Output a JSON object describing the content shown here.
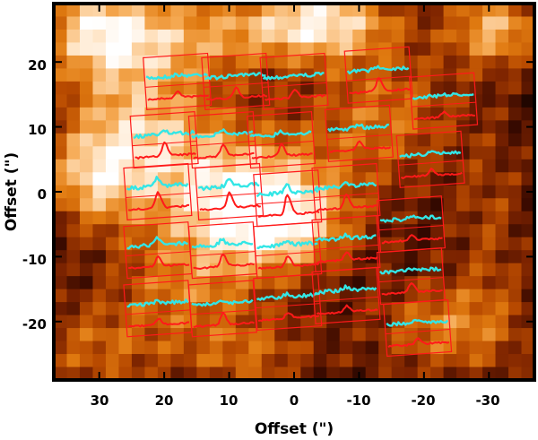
{
  "chart_data": {
    "type": "heatmap",
    "title": "",
    "xlabel": "Offset (\")",
    "ylabel": "Offset (\")",
    "xlim": [
      37,
      -37
    ],
    "ylim": [
      -29,
      29
    ],
    "x_ticks": [
      30,
      20,
      10,
      0,
      -10,
      -20,
      -30
    ],
    "x_tick_labels": [
      "30",
      "20",
      "10",
      "0",
      "-10",
      "-20",
      "-30"
    ],
    "y_ticks": [
      20,
      10,
      0,
      -10,
      -20
    ],
    "y_tick_labels": [
      "20",
      "10",
      "0",
      "-10",
      "-20"
    ],
    "colormap": [
      "#000000",
      "#3a0a00",
      "#7a2200",
      "#b84a00",
      "#e07a10",
      "#f5a850",
      "#ffe2c0",
      "#ffffff"
    ],
    "emission_blobs": [
      {
        "x": 24,
        "y": 10,
        "sx": 8,
        "sy": 8,
        "amp": 0.55
      },
      {
        "x": 8,
        "y": 0,
        "sx": 10,
        "sy": 7,
        "amp": 0.65
      },
      {
        "x": 2,
        "y": -5,
        "sx": 7,
        "sy": 5,
        "amp": 0.5
      },
      {
        "x": 31,
        "y": 2,
        "sx": 5,
        "sy": 5,
        "amp": 0.45
      },
      {
        "x": -4,
        "y": 26,
        "sx": 8,
        "sy": 4,
        "amp": 0.7
      },
      {
        "x": 30,
        "y": 25,
        "sx": 6,
        "sy": 5,
        "amp": 0.6
      },
      {
        "x": -31,
        "y": 25,
        "sx": 5,
        "sy": 4,
        "amp": 0.55
      },
      {
        "x": -14,
        "y": 12,
        "sx": 8,
        "sy": 7,
        "amp": 0.35
      },
      {
        "x": 16,
        "y": -14,
        "sx": 8,
        "sy": 6,
        "amp": 0.35
      },
      {
        "x": -24,
        "y": -21,
        "sx": 8,
        "sy": 5,
        "amp": 0.4
      },
      {
        "x": 16,
        "y": 24,
        "sx": 10,
        "sy": 5,
        "amp": 0.4
      },
      {
        "x": -30,
        "y": -5,
        "sx": 4,
        "sy": 10,
        "amp": 0.2
      },
      {
        "x": 30,
        "y": -24,
        "sx": 8,
        "sy": 5,
        "amp": 0.3
      },
      {
        "x": 7,
        "y": -25,
        "sx": 7,
        "sy": 4,
        "amp": 0.3
      }
    ],
    "spectra_panels": [
      {
        "x": 18,
        "y": 17,
        "tilt": -4,
        "peak": 0.3,
        "cyan_bump": 0.1
      },
      {
        "x": 9,
        "y": 17,
        "tilt": -4,
        "peak": 0.5,
        "cyan_bump": 0.1
      },
      {
        "x": 0,
        "y": 17,
        "tilt": -4,
        "peak": 0.4,
        "cyan_bump": 0.1
      },
      {
        "x": -13,
        "y": 18,
        "tilt": -4,
        "peak": 0.7,
        "cyan_bump": 0.2
      },
      {
        "x": -23,
        "y": 14,
        "tilt": -4,
        "peak": 0.25,
        "cyan_bump": 0.1
      },
      {
        "x": 20,
        "y": 8,
        "tilt": -4,
        "peak": 0.7,
        "cyan_bump": 0.3
      },
      {
        "x": 11,
        "y": 8,
        "tilt": -4,
        "peak": 0.6,
        "cyan_bump": 0.3
      },
      {
        "x": 2,
        "y": 8,
        "tilt": -4,
        "peak": 0.6,
        "cyan_bump": 0.2
      },
      {
        "x": -10,
        "y": 9,
        "tilt": -4,
        "peak": 0.4,
        "cyan_bump": 0.2
      },
      {
        "x": -21,
        "y": 5,
        "tilt": -4,
        "peak": 0.3,
        "cyan_bump": 0.1
      },
      {
        "x": 21,
        "y": 0,
        "tilt": -4,
        "peak": 0.8,
        "cyan_bump": 0.5
      },
      {
        "x": 10,
        "y": 0,
        "tilt": -4,
        "peak": 0.8,
        "cyan_bump": 0.4
      },
      {
        "x": 1,
        "y": -1,
        "tilt": -4,
        "peak": 1.0,
        "cyan_bump": 0.5
      },
      {
        "x": -8,
        "y": 0,
        "tilt": -4,
        "peak": 0.7,
        "cyan_bump": 0.3
      },
      {
        "x": -18,
        "y": -5,
        "tilt": -4,
        "peak": 0.3,
        "cyan_bump": 0.2
      },
      {
        "x": 21,
        "y": -9,
        "tilt": -4,
        "peak": 0.5,
        "cyan_bump": 0.4
      },
      {
        "x": 11,
        "y": -9,
        "tilt": -4,
        "peak": 0.6,
        "cyan_bump": 0.3
      },
      {
        "x": 1,
        "y": -9,
        "tilt": -4,
        "peak": 0.5,
        "cyan_bump": 0.2
      },
      {
        "x": -8,
        "y": -8,
        "tilt": -4,
        "peak": 0.4,
        "cyan_bump": 0.2
      },
      {
        "x": -18,
        "y": -13,
        "tilt": -4,
        "peak": 0.5,
        "cyan_bump": 0.1
      },
      {
        "x": 21,
        "y": -18,
        "tilt": -4,
        "peak": 0.3,
        "cyan_bump": 0.1
      },
      {
        "x": 11,
        "y": -18,
        "tilt": -4,
        "peak": 0.6,
        "cyan_bump": 0.2
      },
      {
        "x": 1,
        "y": -17,
        "tilt": -4,
        "peak": 0.3,
        "cyan_bump": 0.2
      },
      {
        "x": -8,
        "y": -16,
        "tilt": -4,
        "peak": 0.3,
        "cyan_bump": 0.2
      },
      {
        "x": -19,
        "y": -21,
        "tilt": -4,
        "peak": 0.3,
        "cyan_bump": 0.1
      }
    ],
    "series_colors": {
      "cyan_spectrum": "#33e6e6",
      "red_spectrum": "#ff1a1a",
      "panel_frame": "#ff1a1a"
    }
  }
}
